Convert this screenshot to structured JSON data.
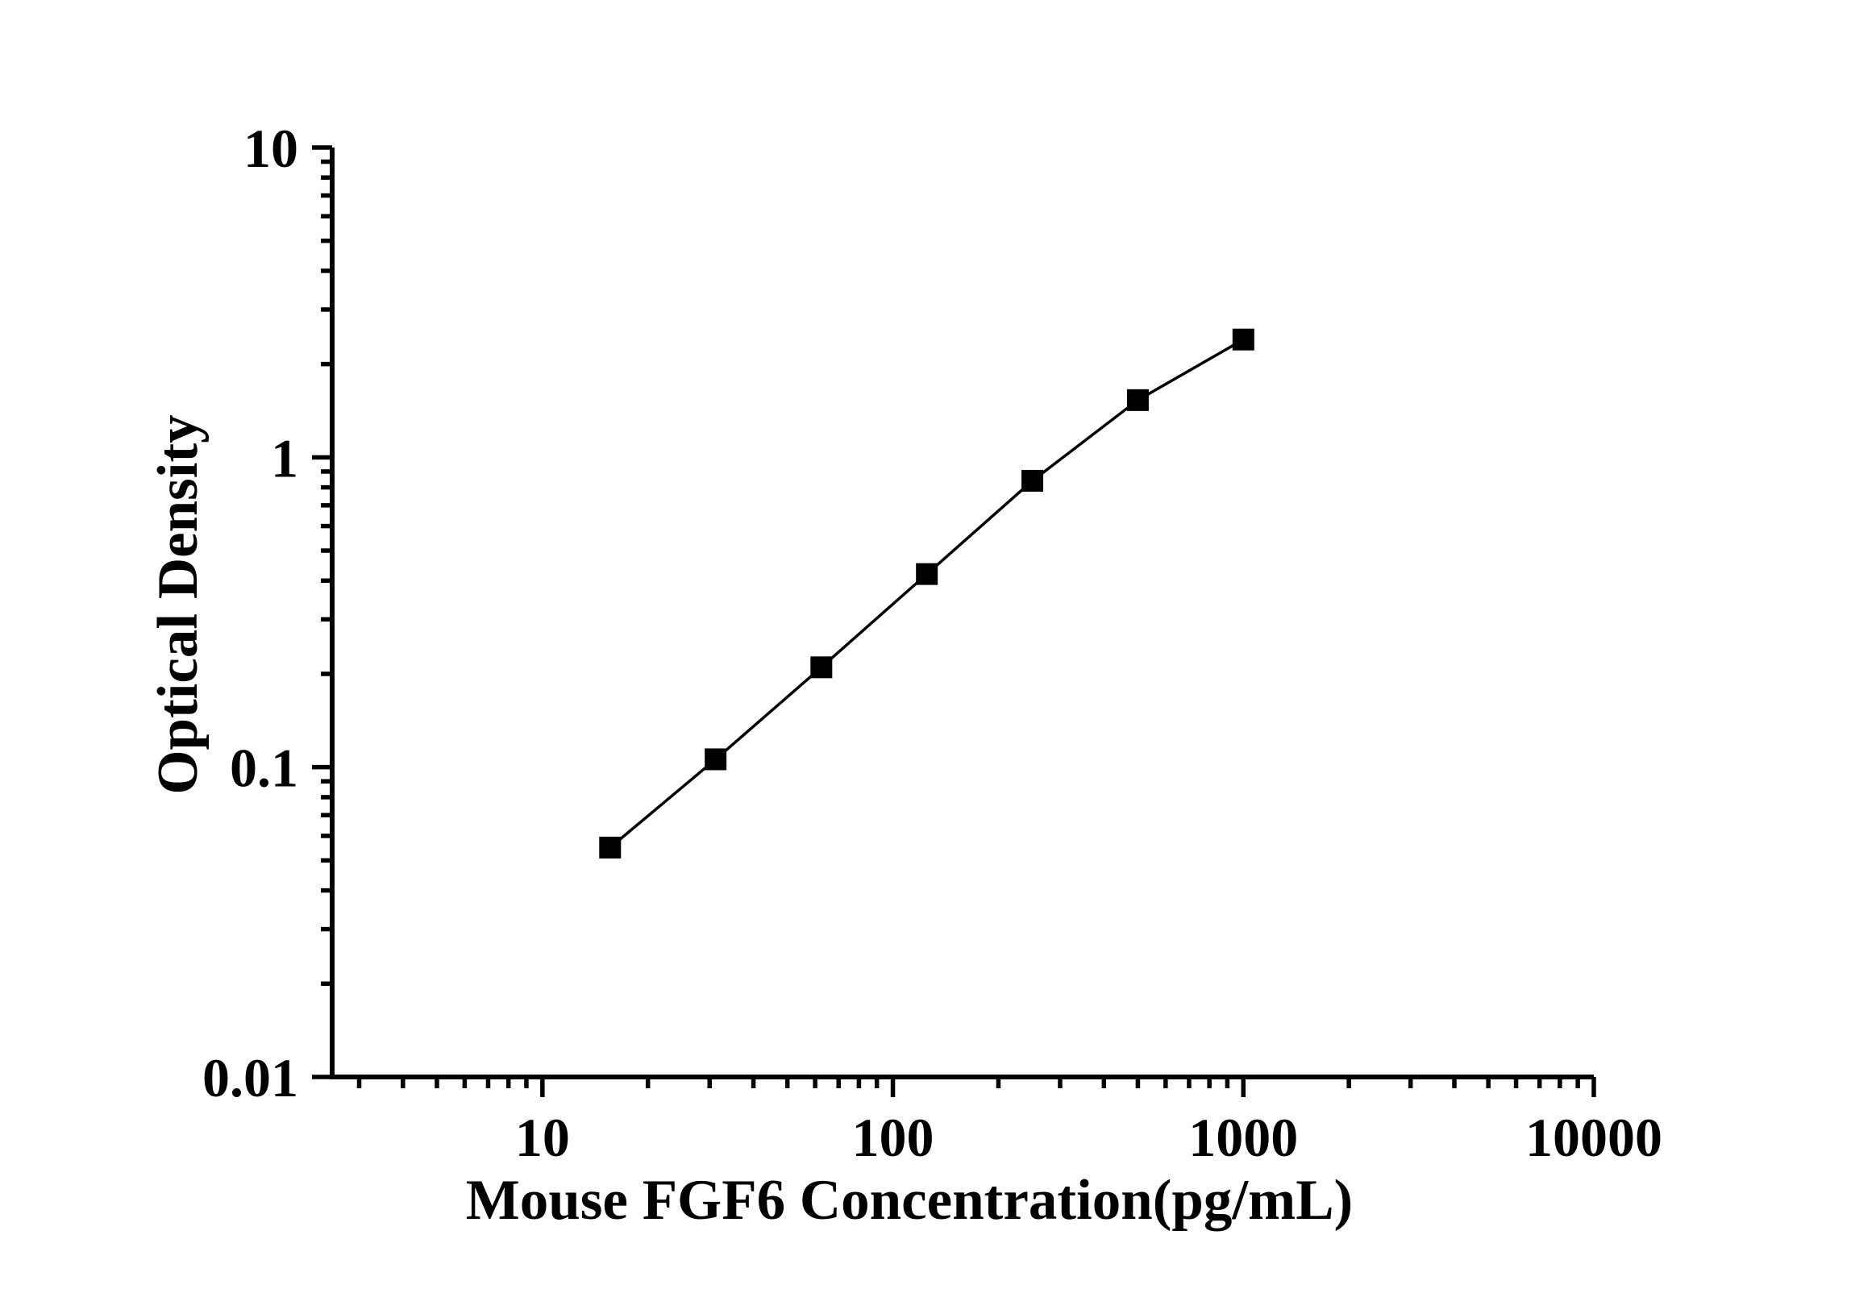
{
  "chart_data": {
    "type": "line",
    "title": "",
    "xlabel": "Mouse FGF6 Concentration(pg/mL)",
    "ylabel": "Optical Density",
    "x_scale": "log",
    "y_scale": "log",
    "xlim": [
      2.512,
      10000
    ],
    "ylim": [
      0.01,
      10
    ],
    "x_major_ticks": [
      10,
      100,
      1000,
      10000
    ],
    "x_tick_labels": [
      "10",
      "100",
      "1000",
      "10000"
    ],
    "y_major_ticks": [
      10,
      1,
      0.1,
      0.01
    ],
    "y_tick_labels": [
      "10",
      "1",
      "0.1",
      "0.01"
    ],
    "grid": false,
    "legend": "none",
    "marker": "filled-square",
    "line_color": "#000000",
    "marker_color": "#000000",
    "axis_color": "#000000",
    "background_color": "#ffffff",
    "series": [
      {
        "name": "standard-curve",
        "points": [
          {
            "x": 15.6,
            "y": 0.055
          },
          {
            "x": 31.2,
            "y": 0.106
          },
          {
            "x": 62.5,
            "y": 0.21
          },
          {
            "x": 125,
            "y": 0.42
          },
          {
            "x": 250,
            "y": 0.84
          },
          {
            "x": 500,
            "y": 1.53
          },
          {
            "x": 1000,
            "y": 2.4
          }
        ]
      }
    ]
  }
}
